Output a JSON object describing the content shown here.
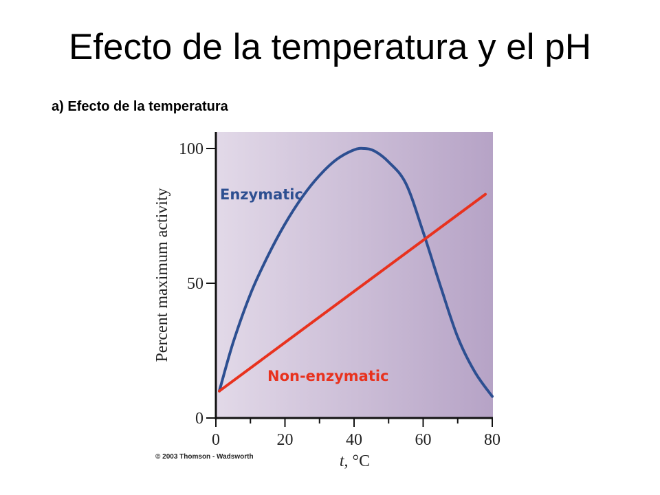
{
  "slide": {
    "title": "Efecto de la temperatura y el pH",
    "subtitle": "a) Efecto de la temperatura",
    "copyright": "© 2003 Thomson - Wadsworth"
  },
  "chart_data": {
    "type": "line",
    "title": "",
    "xlabel_var": "t",
    "xlabel_unit": ", °C",
    "ylabel": "Percent maximum activity",
    "xlim": [
      0,
      80
    ],
    "ylim": [
      0,
      100
    ],
    "x_ticks": [
      0,
      20,
      40,
      60,
      80
    ],
    "x_tick_labels": [
      "0",
      "20",
      "40",
      "60",
      "80"
    ],
    "y_ticks": [
      0,
      50,
      100
    ],
    "y_tick_labels": [
      "0",
      "50",
      "100"
    ],
    "grid": false,
    "background_gradient": [
      "#e2d9e8",
      "#b6a3c6"
    ],
    "series": [
      {
        "name": "Enzymatic",
        "color": "#2d4f91",
        "x": [
          1,
          5,
          10,
          15,
          20,
          25,
          30,
          35,
          40,
          43,
          46,
          50,
          55,
          60,
          65,
          70,
          75,
          80
        ],
        "y": [
          10,
          28,
          46,
          60,
          72,
          82,
          90,
          96,
          99.5,
          100,
          99,
          95,
          87,
          69,
          49,
          30,
          17,
          8
        ]
      },
      {
        "name": "Non-enzymatic",
        "color": "#e8321e",
        "x": [
          1,
          78
        ],
        "y": [
          10,
          83
        ]
      }
    ]
  }
}
